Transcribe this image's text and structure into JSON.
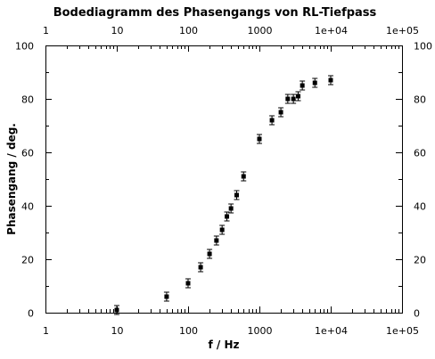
{
  "chart_data": {
    "type": "scatter",
    "title": "Bodediagramm des Phasengangs von RL-Tiefpass",
    "xlabel": "f / Hz",
    "ylabel": "Phasengang / deg.",
    "xscale": "log",
    "xlim": [
      1,
      100000
    ],
    "ylim": [
      0,
      100
    ],
    "x_ticks": [
      1,
      10,
      100,
      1000,
      10000,
      100000
    ],
    "x_tick_labels": [
      "1",
      "10",
      "100",
      "1000",
      "1e+04",
      "1e+05"
    ],
    "y_ticks": [
      0,
      20,
      40,
      60,
      80,
      100
    ],
    "y_tick_labels": [
      "0",
      "20",
      "40",
      "60",
      "80",
      "100"
    ],
    "grid": false,
    "mirrored_axes": true,
    "marker": "square with error bars",
    "color": "#000000",
    "points": [
      {
        "x": 10,
        "y": 1
      },
      {
        "x": 50,
        "y": 6
      },
      {
        "x": 100,
        "y": 11
      },
      {
        "x": 150,
        "y": 17
      },
      {
        "x": 200,
        "y": 22
      },
      {
        "x": 250,
        "y": 27
      },
      {
        "x": 300,
        "y": 31
      },
      {
        "x": 350,
        "y": 36
      },
      {
        "x": 400,
        "y": 39
      },
      {
        "x": 480,
        "y": 44
      },
      {
        "x": 600,
        "y": 51
      },
      {
        "x": 1000,
        "y": 65
      },
      {
        "x": 1500,
        "y": 72
      },
      {
        "x": 2000,
        "y": 75
      },
      {
        "x": 2500,
        "y": 80
      },
      {
        "x": 3000,
        "y": 80
      },
      {
        "x": 3500,
        "y": 81
      },
      {
        "x": 4000,
        "y": 85
      },
      {
        "x": 6000,
        "y": 86
      },
      {
        "x": 10000,
        "y": 87
      }
    ]
  }
}
